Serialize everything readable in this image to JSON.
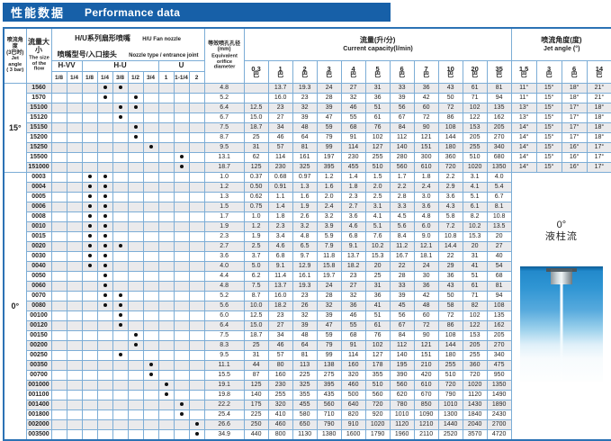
{
  "title": {
    "zh": "性能数据",
    "en": "Performance data"
  },
  "colors": {
    "title_bg": "#1760a8",
    "table_border": "#2c72b4",
    "grid": "#7cadd6",
    "row_alt": "#eaeaec",
    "photo_blue": "#1f86c9"
  },
  "header": {
    "jet_angle_3bar": {
      "zh1": "喷流角度",
      "zh2": "(3巴时)",
      "en1": "Jet angle",
      "en2": "( 3 bar)"
    },
    "flow_size": {
      "zh": "流量大小",
      "en": "The size of the flow"
    },
    "nozzle": {
      "zh1": "H/U系列扇形喷嘴",
      "en1": "H/U  Fan nozzle",
      "zh2": "喷嘴型号/入口接头",
      "en2": "Nozzle type / entrance joint"
    },
    "orifice": {
      "zh": "等效喷孔孔径",
      "unit": "(mm)",
      "en": "Equivalent orifice diameter"
    },
    "capacity": {
      "zh": "流量(升/分)",
      "en": "Current capacity(l/min)"
    },
    "jet_angle": {
      "zh": "喷流角度(度)",
      "en": "Jet angle (°)"
    },
    "nozzle_groups": [
      "H-VV",
      "H-U",
      "U"
    ],
    "sizes": [
      "1/8",
      "1/4",
      "1/8",
      "1/4",
      "3/8",
      "1/2",
      "3/4",
      "1",
      "1-1/4",
      "2"
    ],
    "capacity_pressures": [
      "0.3",
      "1",
      "2",
      "3",
      "4",
      "5",
      "6",
      "7",
      "10",
      "20",
      "35"
    ],
    "angle_pressures": [
      "1.5",
      "3",
      "6",
      "14"
    ],
    "pressure_unit": "巴"
  },
  "sections": [
    {
      "angle_label": "15°",
      "rows": [
        {
          "flow": "1560",
          "dots": [
            3,
            4
          ],
          "orifice": "4.8",
          "cap": [
            "",
            "13.7",
            "19.3",
            "24",
            "27",
            "31",
            "33",
            "36",
            "43",
            "61",
            "81"
          ],
          "angles": [
            "11°",
            "15°",
            "18°",
            "21°"
          ]
        },
        {
          "flow": "1570",
          "dots": [
            3,
            5
          ],
          "orifice": "5.2",
          "cap": [
            "",
            "16.0",
            "23",
            "28",
            "32",
            "36",
            "39",
            "42",
            "50",
            "71",
            "94"
          ],
          "angles": [
            "11°",
            "15°",
            "18°",
            "21°"
          ]
        },
        {
          "flow": "15100",
          "dots": [
            4,
            5
          ],
          "orifice": "6.4",
          "cap": [
            "12.5",
            "23",
            "32",
            "39",
            "46",
            "51",
            "56",
            "60",
            "72",
            "102",
            "135"
          ],
          "angles": [
            "13°",
            "15°",
            "17°",
            "18°"
          ]
        },
        {
          "flow": "15120",
          "dots": [
            4
          ],
          "orifice": "6.7",
          "cap": [
            "15.0",
            "27",
            "39",
            "47",
            "55",
            "61",
            "67",
            "72",
            "86",
            "122",
            "162"
          ],
          "angles": [
            "13°",
            "15°",
            "17°",
            "18°"
          ]
        },
        {
          "flow": "15150",
          "dots": [
            5
          ],
          "orifice": "7.5",
          "cap": [
            "18.7",
            "34",
            "48",
            "59",
            "68",
            "76",
            "84",
            "90",
            "108",
            "153",
            "205"
          ],
          "angles": [
            "14°",
            "15°",
            "17°",
            "18°"
          ]
        },
        {
          "flow": "15200",
          "dots": [
            5
          ],
          "orifice": "8.7",
          "cap": [
            "25",
            "46",
            "64",
            "79",
            "91",
            "102",
            "112",
            "121",
            "144",
            "205",
            "270"
          ],
          "angles": [
            "14°",
            "15°",
            "17°",
            "18°"
          ]
        },
        {
          "flow": "15250",
          "dots": [
            6
          ],
          "orifice": "9.5",
          "cap": [
            "31",
            "57",
            "81",
            "99",
            "114",
            "127",
            "140",
            "151",
            "180",
            "255",
            "340"
          ],
          "angles": [
            "14°",
            "15°",
            "16°",
            "17°"
          ]
        },
        {
          "flow": "15500",
          "dots": [
            8
          ],
          "orifice": "13.1",
          "cap": [
            "62",
            "114",
            "161",
            "197",
            "230",
            "255",
            "280",
            "300",
            "360",
            "510",
            "680"
          ],
          "angles": [
            "14°",
            "15°",
            "16°",
            "17°"
          ]
        },
        {
          "flow": "151000",
          "dots": [
            8
          ],
          "orifice": "18.7",
          "cap": [
            "125",
            "230",
            "325",
            "395",
            "455",
            "510",
            "560",
            "610",
            "720",
            "1020",
            "1350"
          ],
          "angles": [
            "14°",
            "15°",
            "16°",
            "17°"
          ]
        }
      ]
    },
    {
      "angle_label": "0°",
      "right_panel": {
        "angle": "0°",
        "flow_type": "液柱流"
      },
      "rows": [
        {
          "flow": "0003",
          "dots": [
            2,
            3
          ],
          "orifice": "1.0",
          "cap": [
            "0.37",
            "0.68",
            "0.97",
            "1.2",
            "1.4",
            "1.5",
            "1.7",
            "1.8",
            "2.2",
            "3.1",
            "4.0"
          ]
        },
        {
          "flow": "0004",
          "dots": [
            2,
            3
          ],
          "orifice": "1.2",
          "cap": [
            "0.50",
            "0.91",
            "1.3",
            "1.6",
            "1.8",
            "2.0",
            "2.2",
            "2.4",
            "2.9",
            "4.1",
            "5.4"
          ]
        },
        {
          "flow": "0005",
          "dots": [
            2,
            3
          ],
          "orifice": "1.3",
          "cap": [
            "0.62",
            "1.1",
            "1.6",
            "2.0",
            "2.3",
            "2.5",
            "2.8",
            "3.0",
            "3.6",
            "5.1",
            "6.7"
          ]
        },
        {
          "flow": "0006",
          "dots": [
            2,
            3
          ],
          "orifice": "1.5",
          "cap": [
            "0.75",
            "1.4",
            "1.9",
            "2.4",
            "2.7",
            "3.1",
            "3.3",
            "3.6",
            "4.3",
            "6.1",
            "8.1"
          ]
        },
        {
          "flow": "0008",
          "dots": [
            2,
            3
          ],
          "orifice": "1.7",
          "cap": [
            "1.0",
            "1.8",
            "2.6",
            "3.2",
            "3.6",
            "4.1",
            "4.5",
            "4.8",
            "5.8",
            "8.2",
            "10.8"
          ]
        },
        {
          "flow": "0010",
          "dots": [
            2,
            3
          ],
          "orifice": "1.9",
          "cap": [
            "1.2",
            "2.3",
            "3.2",
            "3.9",
            "4.6",
            "5.1",
            "5.6",
            "6.0",
            "7.2",
            "10.2",
            "13.5"
          ]
        },
        {
          "flow": "0015",
          "dots": [
            2,
            3
          ],
          "orifice": "2.3",
          "cap": [
            "1.9",
            "3.4",
            "4.8",
            "5.9",
            "6.8",
            "7.6",
            "8.4",
            "9.0",
            "10.8",
            "15.3",
            "20"
          ]
        },
        {
          "flow": "0020",
          "dots": [
            2,
            3,
            4
          ],
          "orifice": "2.7",
          "cap": [
            "2.5",
            "4.6",
            "6.5",
            "7.9",
            "9.1",
            "10.2",
            "11.2",
            "12.1",
            "14.4",
            "20",
            "27"
          ]
        },
        {
          "flow": "0030",
          "dots": [
            2,
            3
          ],
          "orifice": "3.6",
          "cap": [
            "3.7",
            "6.8",
            "9.7",
            "11.8",
            "13.7",
            "15.3",
            "16.7",
            "18.1",
            "22",
            "31",
            "40"
          ]
        },
        {
          "flow": "0040",
          "dots": [
            2,
            3
          ],
          "orifice": "4.0",
          "cap": [
            "5.0",
            "9.1",
            "12.9",
            "15.8",
            "18.2",
            "20",
            "22",
            "24",
            "29",
            "41",
            "54"
          ]
        },
        {
          "flow": "0050",
          "dots": [
            3
          ],
          "orifice": "4.4",
          "cap": [
            "6.2",
            "11.4",
            "16.1",
            "19.7",
            "23",
            "25",
            "28",
            "30",
            "36",
            "51",
            "68"
          ]
        },
        {
          "flow": "0060",
          "dots": [
            3
          ],
          "orifice": "4.8",
          "cap": [
            "7.5",
            "13.7",
            "19.3",
            "24",
            "27",
            "31",
            "33",
            "36",
            "43",
            "61",
            "81"
          ]
        },
        {
          "flow": "0070",
          "dots": [
            3,
            4
          ],
          "orifice": "5.2",
          "cap": [
            "8.7",
            "16.0",
            "23",
            "28",
            "32",
            "36",
            "39",
            "42",
            "50",
            "71",
            "94"
          ]
        },
        {
          "flow": "0080",
          "dots": [
            3,
            4
          ],
          "orifice": "5.6",
          "cap": [
            "10.0",
            "18.2",
            "26",
            "32",
            "36",
            "41",
            "45",
            "48",
            "58",
            "82",
            "108"
          ]
        },
        {
          "flow": "00100",
          "dots": [
            4
          ],
          "orifice": "6.0",
          "cap": [
            "12.5",
            "23",
            "32",
            "39",
            "46",
            "51",
            "56",
            "60",
            "72",
            "102",
            "135"
          ]
        },
        {
          "flow": "00120",
          "dots": [
            4
          ],
          "orifice": "6.4",
          "cap": [
            "15.0",
            "27",
            "39",
            "47",
            "55",
            "61",
            "67",
            "72",
            "86",
            "122",
            "162"
          ]
        },
        {
          "flow": "00150",
          "dots": [
            5
          ],
          "orifice": "7.5",
          "cap": [
            "18.7",
            "34",
            "48",
            "59",
            "68",
            "76",
            "84",
            "90",
            "108",
            "153",
            "205"
          ]
        },
        {
          "flow": "00200",
          "dots": [
            5
          ],
          "orifice": "8.3",
          "cap": [
            "25",
            "46",
            "64",
            "79",
            "91",
            "102",
            "112",
            "121",
            "144",
            "205",
            "270"
          ]
        },
        {
          "flow": "00250",
          "dots": [
            4
          ],
          "orifice": "9.5",
          "cap": [
            "31",
            "57",
            "81",
            "99",
            "114",
            "127",
            "140",
            "151",
            "180",
            "255",
            "340"
          ]
        },
        {
          "flow": "00350",
          "dots": [
            6
          ],
          "orifice": "11.1",
          "cap": [
            "44",
            "80",
            "113",
            "138",
            "160",
            "178",
            "195",
            "210",
            "255",
            "360",
            "475"
          ]
        },
        {
          "flow": "00700",
          "dots": [
            6
          ],
          "orifice": "15.5",
          "cap": [
            "87",
            "160",
            "225",
            "275",
            "320",
            "355",
            "390",
            "420",
            "510",
            "720",
            "950"
          ]
        },
        {
          "flow": "001000",
          "dots": [
            7
          ],
          "orifice": "19.1",
          "cap": [
            "125",
            "230",
            "325",
            "395",
            "460",
            "510",
            "560",
            "610",
            "720",
            "1020",
            "1350"
          ]
        },
        {
          "flow": "001100",
          "dots": [
            7
          ],
          "orifice": "19.8",
          "cap": [
            "140",
            "255",
            "355",
            "435",
            "500",
            "560",
            "620",
            "670",
            "790",
            "1120",
            "1490"
          ]
        },
        {
          "flow": "001400",
          "dots": [
            8
          ],
          "orifice": "22.2",
          "cap": [
            "175",
            "320",
            "455",
            "560",
            "640",
            "720",
            "780",
            "850",
            "1010",
            "1430",
            "1890"
          ]
        },
        {
          "flow": "001800",
          "dots": [
            8
          ],
          "orifice": "25.4",
          "cap": [
            "225",
            "410",
            "580",
            "710",
            "820",
            "920",
            "1010",
            "1090",
            "1300",
            "1840",
            "2430"
          ]
        },
        {
          "flow": "002000",
          "dots": [
            9
          ],
          "orifice": "26.6",
          "cap": [
            "250",
            "460",
            "650",
            "790",
            "910",
            "1020",
            "1120",
            "1210",
            "1440",
            "2040",
            "2700"
          ]
        },
        {
          "flow": "003500",
          "dots": [
            9
          ],
          "orifice": "34.9",
          "cap": [
            "440",
            "800",
            "1130",
            "1380",
            "1600",
            "1790",
            "1960",
            "2110",
            "2520",
            "3570",
            "4720"
          ]
        }
      ]
    }
  ]
}
